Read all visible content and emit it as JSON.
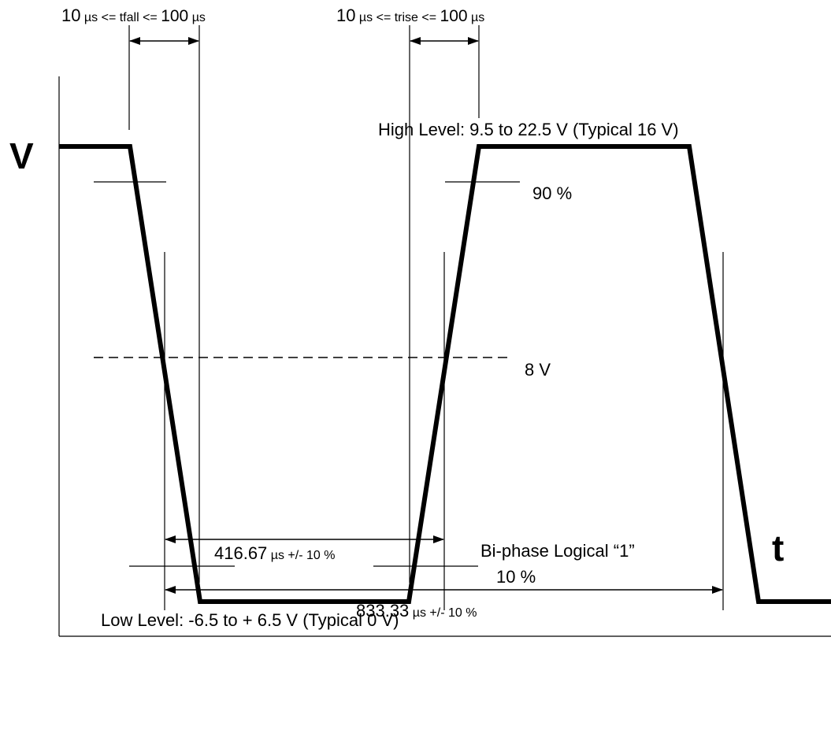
{
  "fall_label": {
    "prefix": "10",
    "mid": " µs <= tfall <= ",
    "num": "100",
    "unit": " µs"
  },
  "rise_label": {
    "prefix": "10",
    "mid": " µs <= trise <= ",
    "num": "100",
    "unit": " µs"
  },
  "v_axis_letter": "V",
  "t_axis_letter": "t",
  "high_level": "High Level:  9.5 to 22.5 V (Typical 16 V)",
  "low_level": "Low Level:  -6.5 to + 6.5 V (Typical 0 V)",
  "pct_90": "90 %",
  "mid_voltage": "8 V",
  "pct_10": "10 %",
  "half_period": {
    "value": "416.67",
    "suffix": " µs +/- 10 %"
  },
  "full_period": {
    "value": "833.33",
    "suffix": " µs +/- 10 %"
  },
  "caption": "Bi-phase Logical “1”"
}
